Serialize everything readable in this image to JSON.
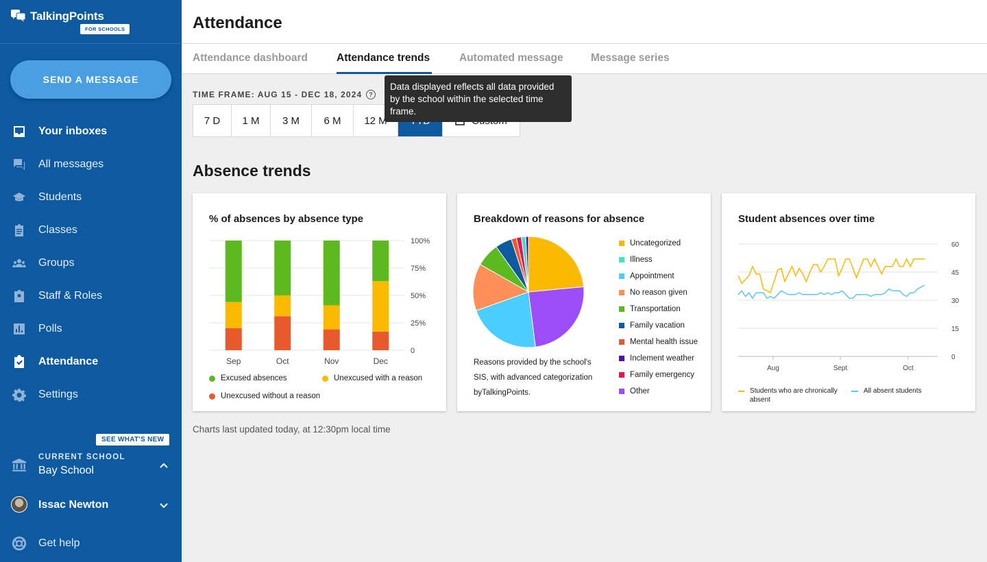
{
  "app": {
    "brand": "TalkingPoints",
    "brand_badge": "FOR SCHOOLS",
    "send_button": "SEND A MESSAGE"
  },
  "sidebar": {
    "items": [
      {
        "label": "Your inboxes",
        "icon": "inbox-icon",
        "active": true
      },
      {
        "label": "All messages",
        "icon": "chat-icon",
        "active": false
      },
      {
        "label": "Students",
        "icon": "graduation-cap-icon",
        "active": false
      },
      {
        "label": "Classes",
        "icon": "clipboard-icon",
        "active": false
      },
      {
        "label": "Groups",
        "icon": "group-icon",
        "active": false
      },
      {
        "label": "Staff & Roles",
        "icon": "badge-icon",
        "active": false
      },
      {
        "label": "Polls",
        "icon": "poll-icon",
        "active": false
      },
      {
        "label": "Attendance",
        "icon": "attendance-check-icon",
        "active": true
      },
      {
        "label": "Settings",
        "icon": "gear-icon",
        "active": false
      }
    ],
    "whats_new": "SEE WHAT'S NEW",
    "current_school_label": "CURRENT SCHOOL",
    "current_school": "Bay School",
    "user_name": "Issac Newton",
    "get_help": "Get help"
  },
  "header": {
    "title": "Attendance",
    "tabs": [
      {
        "label": "Attendance dashboard",
        "active": false
      },
      {
        "label": "Attendance trends",
        "active": true
      },
      {
        "label": "Automated message",
        "active": false
      },
      {
        "label": "Message series",
        "active": false
      }
    ]
  },
  "timeframe": {
    "label": "TIME FRAME: AUG 15 - DEC 18, 2024",
    "help_glyph": "?",
    "tooltip": "Data displayed reflects all data provided by the school within the selected time frame.",
    "options": [
      "7 D",
      "1 M",
      "3 M",
      "6 M",
      "12 M",
      "YTD",
      "Custom"
    ],
    "selected": "YTD"
  },
  "section_title": "Absence trends",
  "cards": {
    "bar": {
      "title": "% of absences by absence type",
      "legend": [
        "Excused absences",
        "Unexcused with a reason",
        "Unexcused without a reason"
      ]
    },
    "pie": {
      "title": "Breakdown of reasons for absence",
      "note": "Reasons provided by the school's SIS, with advanced categorization byTalkingPoints."
    },
    "line": {
      "title": "Student absences over time",
      "legend": [
        "Students who are chronically absent",
        "All absent students"
      ]
    }
  },
  "footer_note": "Charts last updated today, at 12:30pm local time",
  "chart_data": [
    {
      "type": "bar",
      "stacked": true,
      "title": "% of absences by absence type",
      "categories": [
        "Sep",
        "Oct",
        "Nov",
        "Dec"
      ],
      "series": [
        {
          "name": "Unexcused without a reason",
          "color": "#e85a2d",
          "values": [
            20,
            31,
            19,
            17
          ]
        },
        {
          "name": "Unexcused with a reason",
          "color": "#fbb900",
          "values": [
            24,
            19,
            22,
            46
          ]
        },
        {
          "name": "Excused absences",
          "color": "#5cb91e",
          "values": [
            56,
            50,
            59,
            37
          ]
        }
      ],
      "yticks": [
        "0",
        "25%",
        "50%",
        "75%",
        "100%"
      ],
      "ylim": [
        0,
        100
      ]
    },
    {
      "type": "pie",
      "title": "Breakdown of reasons for absence",
      "slices": [
        {
          "label": "Uncategorized",
          "value": 24,
          "color": "#fbb900"
        },
        {
          "label": "Other",
          "value": 25,
          "color": "#9d4df7"
        },
        {
          "label": "Appointment",
          "value": 22,
          "color": "#4ccdff"
        },
        {
          "label": "No reason given",
          "value": 14,
          "color": "#ff8f56"
        },
        {
          "label": "Illness",
          "value": 0,
          "color": "#3fe3c0"
        },
        {
          "label": "Transportation",
          "value": 7,
          "color": "#5cb91e"
        },
        {
          "label": "Family vacation",
          "value": 5,
          "color": "#0d5aa0"
        },
        {
          "label": "Mental health issue",
          "value": 1.5,
          "color": "#e85a2d"
        },
        {
          "label": "Family emergency",
          "value": 1.5,
          "color": "#e4135a"
        },
        {
          "label": "Illness",
          "value": 1.3,
          "color": "#3fe3c0"
        },
        {
          "label": "Inclement weather",
          "value": 0.8,
          "color": "#4b0fb1"
        }
      ],
      "legend": [
        {
          "label": "Uncategorized",
          "color": "#fbb900"
        },
        {
          "label": "Illness",
          "color": "#3fe3c0"
        },
        {
          "label": "Appointment",
          "color": "#4ccdff"
        },
        {
          "label": "No reason given",
          "color": "#ff8f56"
        },
        {
          "label": "Transportation",
          "color": "#5cb91e"
        },
        {
          "label": "Family vacation",
          "color": "#0d5aa0"
        },
        {
          "label": "Mental health issue",
          "color": "#e85a2d"
        },
        {
          "label": "Inclement weather",
          "color": "#4b0fb1"
        },
        {
          "label": "Family emergency",
          "color": "#e4135a"
        },
        {
          "label": "Other",
          "color": "#9d4df7"
        }
      ]
    },
    {
      "type": "line",
      "title": "Student absences over time",
      "xticks": [
        "Aug",
        "Sept",
        "Oct"
      ],
      "yticks": [
        "0",
        "15",
        "30",
        "45",
        "60"
      ],
      "ylim": [
        0,
        60
      ],
      "series": [
        {
          "name": "Students who are chronically absent",
          "color": "#fbb900",
          "values": [
            43,
            39,
            41,
            43,
            48,
            44,
            44,
            36,
            35,
            34,
            40,
            46,
            47,
            40,
            44,
            48,
            43,
            47,
            44,
            40,
            45,
            49,
            49,
            45,
            48,
            52,
            52,
            52,
            43,
            47,
            52,
            52,
            47,
            42,
            47,
            52,
            52,
            48,
            52,
            48,
            44,
            48,
            48,
            48,
            52,
            48,
            48,
            52,
            48,
            52,
            52,
            52,
            52
          ]
        },
        {
          "name": "All absent students",
          "color": "#5bc8f0",
          "values": [
            33,
            35,
            32,
            34,
            31,
            34,
            34,
            34,
            31,
            32,
            31,
            33,
            35,
            34,
            33,
            33,
            33,
            34,
            33,
            33,
            33,
            33,
            33,
            34,
            33,
            34,
            33,
            34,
            34,
            35,
            33,
            31,
            31,
            33,
            33,
            33,
            33,
            32,
            33,
            33,
            33,
            34,
            36,
            35,
            35,
            35,
            33,
            32,
            34,
            34,
            36,
            37,
            38
          ]
        }
      ]
    }
  ]
}
